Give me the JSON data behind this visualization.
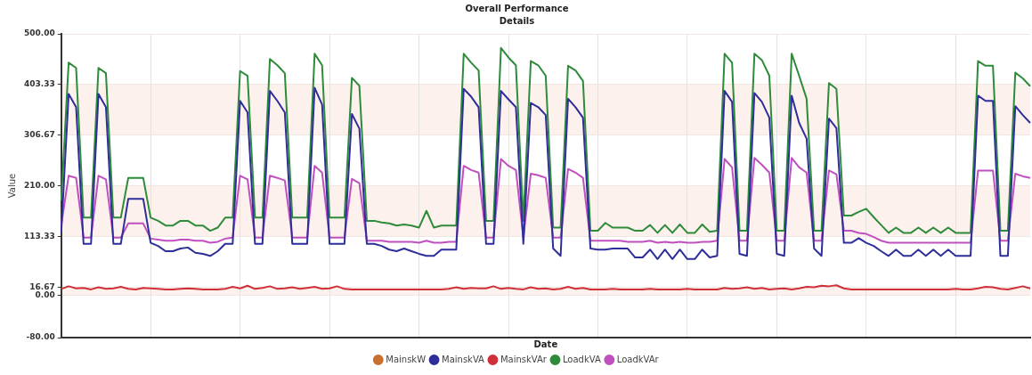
{
  "chart_data": {
    "type": "line",
    "title": "Overall Performance",
    "subtitle": "Details",
    "xlabel": "Date",
    "ylabel": "Value",
    "categories": [
      null,
      null,
      null,
      null,
      null,
      null,
      null,
      null,
      null,
      null,
      null,
      null,
      null,
      null,
      null,
      null,
      null,
      null,
      null,
      null,
      null,
      null,
      null,
      null,
      null,
      null,
      null,
      null,
      null,
      null,
      null,
      null,
      null,
      null,
      null,
      null,
      null,
      null,
      null,
      null,
      null,
      null,
      null,
      null,
      null,
      null,
      null,
      null,
      null,
      null,
      null,
      null,
      null,
      null,
      null,
      null,
      null,
      null,
      null,
      null,
      null,
      null,
      null,
      null,
      null,
      null,
      null,
      null,
      null,
      null,
      null,
      null,
      null,
      null,
      null,
      null,
      null,
      null,
      null,
      null,
      null,
      null,
      null,
      null,
      null,
      null,
      null,
      null,
      null,
      null,
      null,
      null,
      null,
      null,
      null,
      null,
      null,
      null,
      null,
      null,
      null,
      null,
      null,
      null,
      null,
      null,
      null,
      null,
      null,
      null,
      null,
      null,
      null,
      null,
      null,
      null,
      null,
      null,
      null,
      null,
      null,
      null,
      null,
      null,
      null,
      null,
      null,
      null,
      null,
      null,
      null
    ],
    "series": [
      {
        "name": "MainskW",
        "color": "#c87030",
        "values": [
          null,
          null,
          null,
          null,
          null,
          null,
          null,
          null,
          null,
          null,
          null,
          null,
          null,
          null,
          null,
          null,
          null,
          null,
          null,
          null,
          null,
          null,
          null,
          null,
          null,
          null,
          null,
          null,
          null,
          null,
          null,
          null,
          null,
          null,
          null,
          null,
          null,
          null,
          null,
          null,
          null,
          null,
          null,
          null,
          null,
          null,
          null,
          null,
          null,
          null,
          null,
          null,
          null,
          null,
          null,
          null,
          null,
          null,
          null,
          null,
          null,
          null,
          null,
          null,
          null,
          null,
          null,
          null,
          null,
          null,
          null,
          null,
          null,
          null,
          null,
          null,
          null,
          null,
          null,
          null,
          null,
          null,
          null,
          null,
          null,
          null,
          null,
          null,
          null,
          null,
          null,
          null,
          null,
          null,
          null,
          null,
          null,
          null,
          null,
          null,
          null,
          null,
          null,
          null,
          null,
          null,
          null,
          null,
          null,
          null,
          null,
          null,
          null,
          null,
          null,
          null,
          null,
          null,
          null,
          null,
          null,
          null,
          null,
          null,
          null,
          null,
          null,
          null,
          null,
          null,
          null
        ]
      },
      {
        "name": "MainskVA",
        "color": "#2e2e9a",
        "values": [
          120,
          385,
          360,
          99,
          99,
          385,
          360,
          99,
          99,
          185,
          185,
          185,
          101,
          95,
          85,
          85,
          90,
          92,
          82,
          80,
          76,
          85,
          99,
          99,
          372,
          350,
          99,
          99,
          391,
          372,
          350,
          99,
          99,
          99,
          397,
          365,
          99,
          99,
          99,
          347,
          319,
          99,
          99,
          95,
          88,
          85,
          90,
          85,
          80,
          76,
          76,
          88,
          88,
          88,
          395,
          380,
          360,
          99,
          99,
          391,
          375,
          360,
          99,
          368,
          360,
          345,
          90,
          76,
          376,
          360,
          340,
          90,
          88,
          88,
          90,
          90,
          90,
          73,
          73,
          88,
          70,
          88,
          70,
          88,
          70,
          70,
          88,
          73,
          76,
          391,
          370,
          80,
          76,
          387,
          370,
          340,
          80,
          76,
          382,
          330,
          300,
          90,
          76,
          338,
          320,
          101,
          101,
          110,
          101,
          95,
          85,
          76,
          88,
          76,
          76,
          88,
          76,
          88,
          76,
          88,
          76,
          76,
          76,
          382,
          372,
          372,
          76,
          76,
          362,
          345,
          330
        ]
      },
      {
        "name": "MainskVAr",
        "color": "#d0303a",
        "values": [
          13,
          18,
          14,
          15,
          12,
          16,
          13,
          14,
          17,
          13,
          12,
          15,
          14,
          13,
          12,
          12,
          13,
          14,
          13,
          12,
          12,
          12,
          13,
          17,
          14,
          19,
          13,
          15,
          18,
          13,
          14,
          16,
          13,
          15,
          17,
          13,
          14,
          18,
          13,
          12,
          12,
          12,
          12,
          12,
          12,
          12,
          12,
          12,
          12,
          12,
          12,
          12,
          13,
          16,
          13,
          15,
          14,
          14,
          18,
          13,
          15,
          13,
          12,
          16,
          13,
          14,
          12,
          13,
          17,
          13,
          15,
          12,
          12,
          12,
          13,
          12,
          12,
          12,
          12,
          13,
          12,
          12,
          12,
          12,
          13,
          12,
          12,
          12,
          12,
          15,
          13,
          14,
          16,
          13,
          15,
          12,
          13,
          14,
          12,
          14,
          17,
          16,
          19,
          18,
          20,
          14,
          12,
          12,
          12,
          12,
          12,
          12,
          12,
          12,
          12,
          12,
          12,
          12,
          12,
          12,
          13,
          12,
          12,
          14,
          17,
          16,
          13,
          12,
          15,
          18,
          14
        ]
      },
      {
        "name": "LoadkVA",
        "color": "#2e8b3a",
        "values": [
          181,
          445,
          435,
          149,
          149,
          435,
          425,
          149,
          149,
          225,
          225,
          225,
          149,
          143,
          134,
          134,
          143,
          143,
          134,
          134,
          124,
          130,
          149,
          149,
          429,
          420,
          149,
          149,
          452,
          440,
          425,
          149,
          149,
          149,
          462,
          440,
          149,
          149,
          149,
          416,
          401,
          143,
          143,
          140,
          138,
          134,
          136,
          134,
          130,
          162,
          130,
          134,
          134,
          134,
          462,
          445,
          430,
          143,
          143,
          473,
          455,
          440,
          143,
          448,
          440,
          420,
          130,
          130,
          439,
          430,
          410,
          124,
          124,
          139,
          130,
          130,
          130,
          124,
          124,
          135,
          120,
          135,
          120,
          136,
          120,
          120,
          136,
          122,
          124,
          462,
          445,
          124,
          124,
          462,
          450,
          420,
          124,
          124,
          462,
          420,
          376,
          124,
          124,
          406,
          395,
          153,
          153,
          160,
          166,
          150,
          135,
          120,
          130,
          120,
          120,
          130,
          120,
          130,
          120,
          130,
          120,
          120,
          120,
          448,
          439,
          439,
          124,
          124,
          426,
          415,
          400
        ]
      },
      {
        "name": "LoadkVAr",
        "color": "#c050c0",
        "values": [
          134,
          229,
          225,
          111,
          111,
          229,
          222,
          111,
          111,
          138,
          138,
          138,
          109,
          107,
          105,
          105,
          107,
          107,
          105,
          105,
          101,
          103,
          109,
          111,
          229,
          222,
          111,
          111,
          229,
          225,
          220,
          111,
          111,
          111,
          248,
          235,
          111,
          111,
          111,
          223,
          215,
          105,
          105,
          105,
          103,
          103,
          103,
          103,
          101,
          105,
          101,
          101,
          103,
          103,
          248,
          240,
          235,
          111,
          111,
          261,
          248,
          240,
          111,
          233,
          230,
          225,
          111,
          111,
          242,
          235,
          225,
          105,
          105,
          105,
          105,
          105,
          103,
          103,
          103,
          105,
          101,
          103,
          101,
          103,
          101,
          101,
          103,
          103,
          105,
          261,
          245,
          105,
          105,
          263,
          250,
          235,
          105,
          105,
          263,
          245,
          235,
          105,
          105,
          239,
          232,
          124,
          124,
          120,
          118,
          112,
          105,
          101,
          101,
          101,
          101,
          101,
          101,
          101,
          101,
          101,
          101,
          101,
          101,
          239,
          239,
          239,
          105,
          105,
          233,
          228,
          225
        ]
      }
    ],
    "ylim": [
      -80,
      500
    ],
    "yticks": [
      {
        "value": -80,
        "label": "-80.00"
      },
      {
        "value": 0,
        "label": "0.00"
      },
      {
        "value": 16.67,
        "label": "16.67"
      },
      {
        "value": 113.33,
        "label": "113.33"
      },
      {
        "value": 210,
        "label": "210.00"
      },
      {
        "value": 306.67,
        "label": "306.67"
      },
      {
        "value": 403.33,
        "label": "403.33"
      },
      {
        "value": 500,
        "label": "500.00"
      }
    ],
    "grid": true,
    "legend": "bottom",
    "marker": "none",
    "line_style": "solid"
  }
}
